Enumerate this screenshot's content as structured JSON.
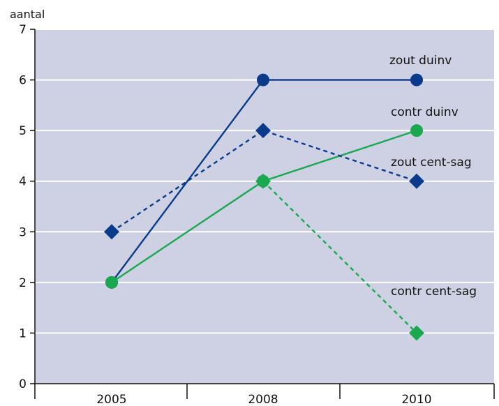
{
  "chart_data": {
    "type": "line",
    "title": "",
    "xlabel": "",
    "ylabel": "aantal",
    "categories": [
      "2005",
      "2008",
      "2010"
    ],
    "ylim": [
      0,
      7
    ],
    "yticks": [
      "0",
      "1",
      "2",
      "3",
      "4",
      "5",
      "6",
      "7"
    ],
    "grid": true,
    "series": [
      {
        "name": "zout duinv",
        "values": [
          2,
          6,
          6
        ],
        "color": "#0a3a8a",
        "marker": "circle",
        "line": "solid"
      },
      {
        "name": "contr duinv",
        "values": [
          2,
          4,
          5
        ],
        "color": "#19a850",
        "marker": "circle",
        "line": "solid"
      },
      {
        "name": "zout cent-sag",
        "values": [
          3,
          5,
          4
        ],
        "color": "#0a3a8a",
        "marker": "diamond",
        "line": "dashed"
      },
      {
        "name": "contr cent-sag",
        "values": [
          null,
          4,
          1
        ],
        "color": "#19a850",
        "marker": "diamond",
        "line": "dashed"
      }
    ],
    "colors": {
      "plot_background": "#cdd1e3",
      "gridline": "#ffffff"
    }
  }
}
